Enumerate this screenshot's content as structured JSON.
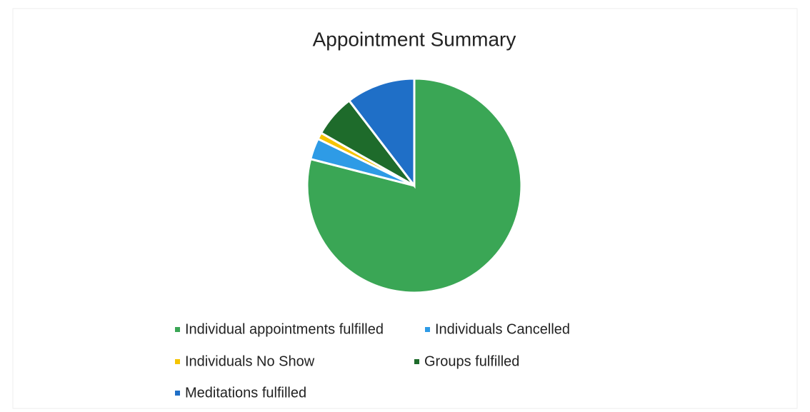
{
  "chart_data": {
    "type": "pie",
    "title": "Appointment Summary",
    "categories": [
      "Individual appointments fulfilled",
      "Individuals Cancelled",
      "Individuals No Show",
      "Groups fulfilled",
      "Meditations fulfilled"
    ],
    "values": [
      79,
      3.2,
      1,
      6.4,
      10.4
    ],
    "colors": [
      "#3aa655",
      "#2e9be6",
      "#f5c400",
      "#1e6b2b",
      "#1f6fc7"
    ],
    "legend": "bottom"
  }
}
